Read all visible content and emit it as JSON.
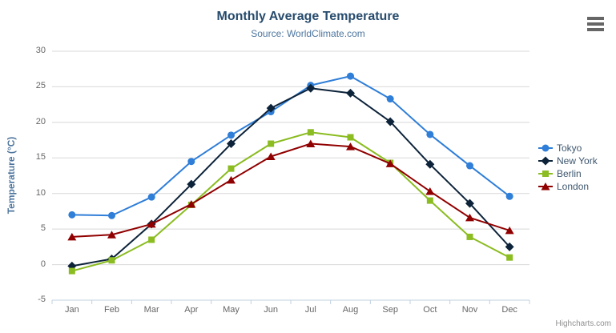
{
  "chart": {
    "title": "Monthly Average Temperature",
    "subtitle": "Source: WorldClimate.com",
    "y_axis_title": "Temperature (°C)",
    "credit": "Highcharts.com",
    "colors": {
      "grid": "#d8d8d8",
      "axis_line": "#c0d0e0",
      "title_text": "#274b6d",
      "subtitle_text": "#4d759e",
      "axis_label_text": "#666666",
      "legend_text": "#3e576f"
    }
  },
  "chart_data": {
    "type": "line",
    "title": "Monthly Average Temperature",
    "subtitle": "Source: WorldClimate.com",
    "xlabel": "",
    "ylabel": "Temperature (°C)",
    "ylim": [
      -5,
      30
    ],
    "y_tick_step": 5,
    "grid": true,
    "legend_position": "right",
    "categories": [
      "Jan",
      "Feb",
      "Mar",
      "Apr",
      "May",
      "Jun",
      "Jul",
      "Aug",
      "Sep",
      "Oct",
      "Nov",
      "Dec"
    ],
    "series": [
      {
        "name": "Tokyo",
        "color": "#2f7ed8",
        "marker": "circle",
        "values": [
          7.0,
          6.9,
          9.5,
          14.5,
          18.2,
          21.5,
          25.2,
          26.5,
          23.3,
          18.3,
          13.9,
          9.6
        ]
      },
      {
        "name": "New York",
        "color": "#0d233a",
        "marker": "diamond",
        "values": [
          -0.2,
          0.8,
          5.7,
          11.3,
          17.0,
          22.0,
          24.8,
          24.1,
          20.1,
          14.1,
          8.6,
          2.5
        ]
      },
      {
        "name": "Berlin",
        "color": "#8bbc21",
        "marker": "square",
        "values": [
          -0.9,
          0.6,
          3.5,
          8.4,
          13.5,
          17.0,
          18.6,
          17.9,
          14.3,
          9.0,
          3.9,
          1.0
        ]
      },
      {
        "name": "London",
        "color": "#910000",
        "marker": "triangle",
        "values": [
          3.9,
          4.2,
          5.7,
          8.5,
          11.9,
          15.2,
          17.0,
          16.6,
          14.2,
          10.3,
          6.6,
          4.8
        ]
      }
    ]
  }
}
